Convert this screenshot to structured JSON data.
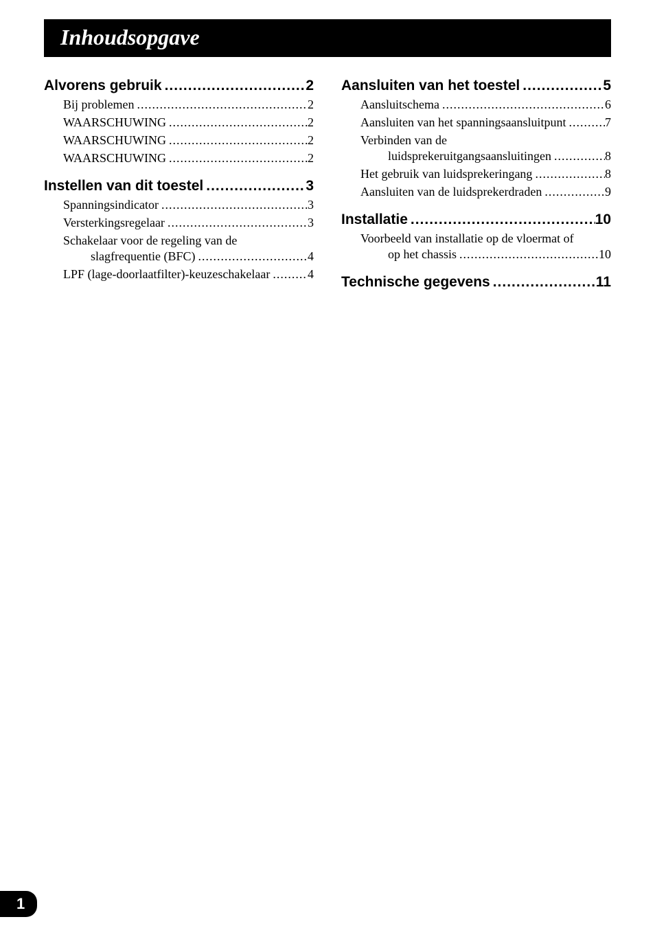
{
  "title": "Inhoudsopgave",
  "page_number": "1",
  "colors": {
    "bar_bg": "#000000",
    "bar_text": "#ffffff",
    "body_bg": "#ffffff",
    "text": "#000000"
  },
  "typography": {
    "title_fontsize": 32,
    "section_fontsize": 21,
    "entry_fontsize": 18,
    "pagenum_fontsize": 22
  },
  "left": {
    "s1": {
      "label": "Alvorens gebruik",
      "page": "2",
      "e1": {
        "label": "Bij problemen",
        "page": "2"
      },
      "e2": {
        "label": "WAARSCHUWING",
        "page": "2"
      },
      "e3": {
        "label": "WAARSCHUWING",
        "page": "2"
      },
      "e4": {
        "label": "WAARSCHUWING",
        "page": "2"
      }
    },
    "s2": {
      "label": "Instellen van dit toestel",
      "page": "3",
      "e1": {
        "label": "Spanningsindicator",
        "page": "3"
      },
      "e2": {
        "label": "Versterkingsregelaar",
        "page": "3"
      },
      "e3": {
        "label_a": "Schakelaar voor de regeling van de",
        "label_b": "slagfrequentie (BFC)",
        "page": "4"
      },
      "e4": {
        "label": "LPF (lage-doorlaatfilter)-keuzeschakelaar",
        "page": "4"
      }
    }
  },
  "right": {
    "s1": {
      "label": "Aansluiten van het toestel",
      "page": "5",
      "e1": {
        "label": "Aansluitschema",
        "page": "6"
      },
      "e2": {
        "label": "Aansluiten van het spanningsaansluitpunt",
        "page": "7"
      },
      "e3": {
        "label_a": "Verbinden van de",
        "label_b": "luidsprekeruitgangsaansluitingen",
        "page": "8"
      },
      "e4": {
        "label": "Het gebruik van luidsprekeringang",
        "page": "8"
      },
      "e5": {
        "label": "Aansluiten van de luidsprekerdraden",
        "page": "9"
      }
    },
    "s2": {
      "label": "Installatie",
      "page": "10",
      "e1": {
        "label_a": "Voorbeeld van installatie op de vloermat of",
        "label_b": "op het chassis",
        "page": "10"
      }
    },
    "s3": {
      "label": "Technische gegevens",
      "page": "11"
    }
  }
}
